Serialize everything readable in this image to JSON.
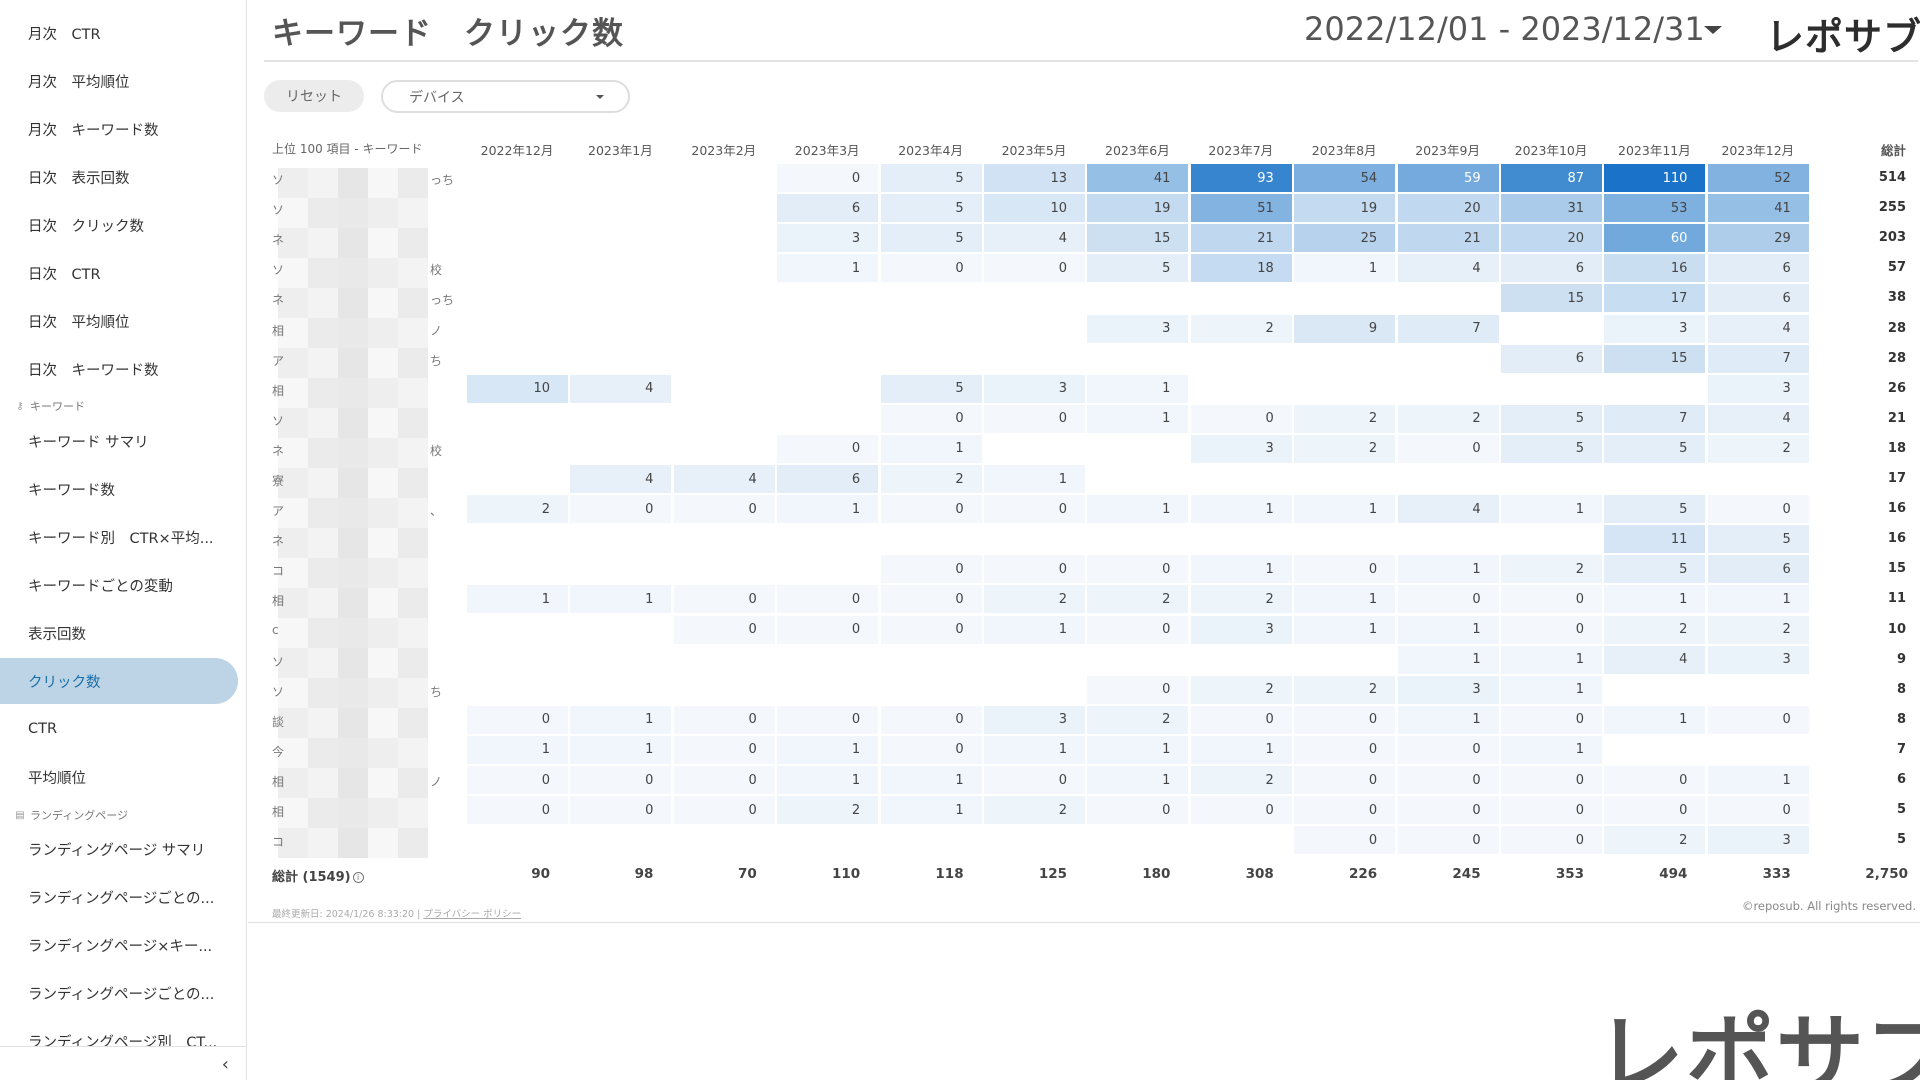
{
  "sidebar": {
    "items": [
      {
        "label": "月次　CTR",
        "type": "item"
      },
      {
        "label": "月次　平均順位",
        "type": "item"
      },
      {
        "label": "月次　キーワード数",
        "type": "item"
      },
      {
        "label": "日次　表示回数",
        "type": "item"
      },
      {
        "label": "日次　クリック数",
        "type": "item"
      },
      {
        "label": "日次　CTR",
        "type": "item"
      },
      {
        "label": "日次　平均順位",
        "type": "item"
      },
      {
        "label": "日次　キーワード数",
        "type": "item"
      },
      {
        "label": "キーワード",
        "type": "section",
        "icon": "key-icon"
      },
      {
        "label": "キーワード サマリ",
        "type": "item"
      },
      {
        "label": "キーワード数",
        "type": "item"
      },
      {
        "label": "キーワード別　CTR×平均...",
        "type": "item"
      },
      {
        "label": "キーワードごとの変動",
        "type": "item"
      },
      {
        "label": "表示回数",
        "type": "item"
      },
      {
        "label": "クリック数",
        "type": "item",
        "active": true
      },
      {
        "label": "CTR",
        "type": "item"
      },
      {
        "label": "平均順位",
        "type": "item"
      },
      {
        "label": "ランディングページ",
        "type": "section",
        "icon": "page-icon"
      },
      {
        "label": "ランディングページ サマリ",
        "type": "item"
      },
      {
        "label": "ランディングページごとの...",
        "type": "item"
      },
      {
        "label": "ランディングページ×キー...",
        "type": "item"
      },
      {
        "label": "ランディングページごとの...",
        "type": "item"
      },
      {
        "label": "ランディングページ別　CT...",
        "type": "item"
      }
    ],
    "collapse_icon": "chevron-left-icon"
  },
  "header": {
    "title": "キーワード　クリック数",
    "date_range": "2022/12/01 - 2023/12/31",
    "brand": "レポサブ"
  },
  "controls": {
    "reset_label": "リセット",
    "device_label": "デバイス"
  },
  "table": {
    "keyword_header": "上位 100 項目 - キーワード",
    "months": [
      "2022年12月",
      "2023年1月",
      "2023年2月",
      "2023年3月",
      "2023年4月",
      "2023年5月",
      "2023年6月",
      "2023年7月",
      "2023年8月",
      "2023年9月",
      "2023年10月",
      "2023年11月",
      "2023年12月"
    ],
    "total_header": "総計",
    "rows": [
      {
        "prefix": "ソ",
        "suffix": "っち",
        "cells": [
          null,
          null,
          null,
          0,
          5,
          13,
          41,
          93,
          54,
          59,
          87,
          110,
          52
        ],
        "total": "514"
      },
      {
        "prefix": "ソ",
        "suffix": "",
        "cells": [
          null,
          null,
          null,
          6,
          5,
          10,
          19,
          51,
          19,
          20,
          31,
          53,
          41
        ],
        "total": "255"
      },
      {
        "prefix": "ネ",
        "suffix": "",
        "cells": [
          null,
          null,
          null,
          3,
          5,
          4,
          15,
          21,
          25,
          21,
          20,
          60,
          29
        ],
        "total": "203"
      },
      {
        "prefix": "ソ",
        "suffix": "校",
        "cells": [
          null,
          null,
          null,
          1,
          0,
          0,
          5,
          18,
          1,
          4,
          6,
          16,
          6
        ],
        "total": "57"
      },
      {
        "prefix": "ネ",
        "suffix": "っち",
        "cells": [
          null,
          null,
          null,
          null,
          null,
          null,
          null,
          null,
          null,
          null,
          15,
          17,
          6
        ],
        "total": "38"
      },
      {
        "prefix": "相",
        "suffix": "ノ",
        "cells": [
          null,
          null,
          null,
          null,
          null,
          null,
          3,
          2,
          9,
          7,
          null,
          3,
          4
        ],
        "total": "28"
      },
      {
        "prefix": "ア",
        "suffix": "ち",
        "cells": [
          null,
          null,
          null,
          null,
          null,
          null,
          null,
          null,
          null,
          null,
          6,
          15,
          7
        ],
        "total": "28"
      },
      {
        "prefix": "相",
        "suffix": "",
        "cells": [
          10,
          4,
          null,
          null,
          5,
          3,
          1,
          null,
          null,
          null,
          null,
          null,
          3
        ],
        "total": "26"
      },
      {
        "prefix": "ソ",
        "suffix": "",
        "cells": [
          null,
          null,
          null,
          null,
          0,
          0,
          1,
          0,
          2,
          2,
          5,
          7,
          4
        ],
        "total": "21"
      },
      {
        "prefix": "ネ",
        "suffix": "校",
        "cells": [
          null,
          null,
          null,
          0,
          1,
          null,
          null,
          3,
          2,
          0,
          5,
          5,
          2
        ],
        "total": "18"
      },
      {
        "prefix": "寮",
        "suffix": "",
        "cells": [
          null,
          4,
          4,
          6,
          2,
          1,
          null,
          null,
          null,
          null,
          null,
          null,
          null
        ],
        "total": "17"
      },
      {
        "prefix": "ア",
        "suffix": "、",
        "cells": [
          2,
          0,
          0,
          1,
          0,
          0,
          1,
          1,
          1,
          4,
          1,
          5,
          0
        ],
        "total": "16"
      },
      {
        "prefix": "ネ",
        "suffix": "",
        "cells": [
          null,
          null,
          null,
          null,
          null,
          null,
          null,
          null,
          null,
          null,
          null,
          11,
          5
        ],
        "total": "16"
      },
      {
        "prefix": "コ",
        "suffix": "",
        "cells": [
          null,
          null,
          null,
          null,
          0,
          0,
          0,
          1,
          0,
          1,
          2,
          5,
          6
        ],
        "total": "15"
      },
      {
        "prefix": "相",
        "suffix": "",
        "cells": [
          1,
          1,
          0,
          0,
          0,
          2,
          2,
          2,
          1,
          0,
          0,
          1,
          1
        ],
        "total": "11"
      },
      {
        "prefix": "c",
        "suffix": "",
        "cells": [
          null,
          null,
          0,
          0,
          0,
          1,
          0,
          3,
          1,
          1,
          0,
          2,
          2
        ],
        "total": "10"
      },
      {
        "prefix": "ソ",
        "suffix": "",
        "cells": [
          null,
          null,
          null,
          null,
          null,
          null,
          null,
          null,
          null,
          1,
          1,
          4,
          3
        ],
        "total": "9"
      },
      {
        "prefix": "ソ",
        "suffix": "ち",
        "cells": [
          null,
          null,
          null,
          null,
          null,
          null,
          0,
          2,
          2,
          3,
          1,
          null,
          null
        ],
        "total": "8"
      },
      {
        "prefix": "談",
        "suffix": "",
        "cells": [
          0,
          1,
          0,
          0,
          0,
          3,
          2,
          0,
          0,
          1,
          0,
          1,
          0
        ],
        "total": "8"
      },
      {
        "prefix": "今",
        "suffix": "",
        "cells": [
          1,
          1,
          0,
          1,
          0,
          1,
          1,
          1,
          0,
          0,
          1,
          null,
          null
        ],
        "total": "7"
      },
      {
        "prefix": "相",
        "suffix": "ノ",
        "cells": [
          0,
          0,
          0,
          1,
          1,
          0,
          1,
          2,
          0,
          0,
          0,
          0,
          1
        ],
        "total": "6"
      },
      {
        "prefix": "相",
        "suffix": "",
        "cells": [
          0,
          0,
          0,
          2,
          1,
          2,
          0,
          0,
          0,
          0,
          0,
          0,
          0
        ],
        "total": "5"
      },
      {
        "prefix": "コ",
        "suffix": "",
        "cells": [
          null,
          null,
          null,
          null,
          null,
          null,
          null,
          null,
          0,
          0,
          0,
          2,
          3
        ],
        "total": "5"
      }
    ],
    "summary": {
      "label": "総計 (1549)",
      "values": [
        "90",
        "98",
        "70",
        "110",
        "118",
        "125",
        "180",
        "308",
        "226",
        "245",
        "353",
        "494",
        "333"
      ],
      "total": "2,750"
    },
    "heat_color_max": "#1a73c8"
  },
  "footer": {
    "updated_label": "最終更新日: 2024/1/26 8:33:20",
    "privacy_link": "プライバシー ポリシー",
    "copyright": "©reposub. All rights reserved."
  },
  "brand_large": "レポサブ"
}
